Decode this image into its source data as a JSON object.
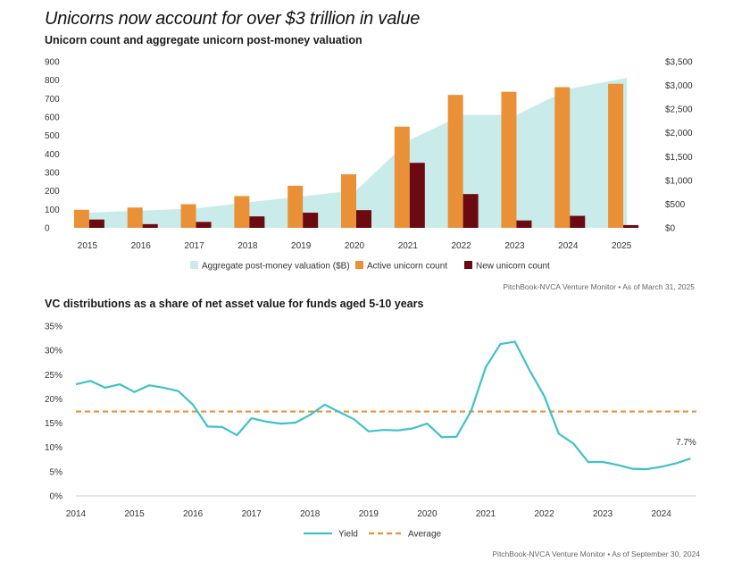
{
  "header": {
    "title": "Unicorns now account for over $3 trillion in value",
    "subtitle": "Unicorn count and aggregate unicorn post-money valuation"
  },
  "chart_data": [
    {
      "type": "bar",
      "title": "Unicorns now account for over $3 trillion in value",
      "subtitle": "Unicorn count and aggregate unicorn post-money valuation",
      "categories": [
        "2015",
        "2016",
        "2017",
        "2018",
        "2019",
        "2020",
        "2021",
        "2022",
        "2023",
        "2024",
        "2025"
      ],
      "series": [
        {
          "name": "Aggregate post-money valuation ($B)",
          "type": "area",
          "axis": "right",
          "color": "#c9ecea",
          "values": [
            310,
            365,
            410,
            540,
            665,
            790,
            1850,
            2380,
            2380,
            2930,
            3160
          ]
        },
        {
          "name": "Active unicorn count",
          "type": "bar",
          "axis": "left",
          "color": "#ea9138",
          "values": [
            98,
            110,
            128,
            172,
            228,
            290,
            548,
            720,
            737,
            762,
            780
          ]
        },
        {
          "name": "New unicorn count",
          "type": "bar",
          "axis": "left",
          "color": "#6b0a10",
          "values": [
            45,
            20,
            32,
            62,
            82,
            96,
            352,
            183,
            40,
            65,
            15
          ]
        }
      ],
      "ylim_left": [
        0,
        900
      ],
      "yticks_left": [
        "900",
        "800",
        "700",
        "600",
        "500",
        "400",
        "300",
        "200",
        "100",
        "0"
      ],
      "ylim_right": [
        0,
        3500
      ],
      "yticks_right": [
        "$3,500",
        "$3,000",
        "$2,500",
        "$2,000",
        "$1,500",
        "$1,000",
        "$500",
        "$0"
      ],
      "legend_position": "bottom",
      "grid": false,
      "source": "PitchBook-NVCA Venture Monitor  •  As of March 31, 2025"
    },
    {
      "type": "line",
      "title": "VC distributions as a share of net asset value for funds aged 5-10 years",
      "x_ticks": [
        "2014",
        "2015",
        "2016",
        "2017",
        "2018",
        "2019",
        "2020",
        "2021",
        "2022",
        "2023",
        "2024"
      ],
      "x": [
        2014.0,
        2014.25,
        2014.5,
        2014.75,
        2015.0,
        2015.25,
        2015.5,
        2015.75,
        2016.0,
        2016.25,
        2016.5,
        2016.75,
        2017.0,
        2017.25,
        2017.5,
        2017.75,
        2018.0,
        2018.25,
        2018.5,
        2018.75,
        2019.0,
        2019.25,
        2019.5,
        2019.75,
        2020.0,
        2020.25,
        2020.5,
        2020.75,
        2021.0,
        2021.25,
        2021.5,
        2021.75,
        2022.0,
        2022.25,
        2022.5,
        2022.75,
        2023.0,
        2023.25,
        2023.5,
        2023.75,
        2024.0,
        2024.25,
        2024.5
      ],
      "series": [
        {
          "name": "Yield",
          "color": "#3fc1c9",
          "values": [
            23.0,
            23.7,
            22.3,
            23.0,
            21.4,
            22.8,
            22.3,
            21.6,
            18.8,
            14.3,
            14.2,
            12.5,
            16.0,
            15.3,
            14.9,
            15.1,
            16.7,
            18.8,
            17.3,
            15.8,
            13.3,
            13.6,
            13.5,
            13.9,
            14.9,
            12.1,
            12.2,
            17.5,
            26.5,
            31.3,
            31.8,
            25.9,
            20.6,
            12.8,
            10.8,
            7.0,
            7.0,
            6.4,
            5.6,
            5.5,
            6.0,
            6.7,
            7.7
          ]
        },
        {
          "name": "Average",
          "color": "#e8913a",
          "style": "dashed",
          "value": 17.4
        }
      ],
      "annotation": "7.7%",
      "ylim": [
        0,
        35
      ],
      "yticks": [
        "35%",
        "30%",
        "25%",
        "20%",
        "15%",
        "10%",
        "5%",
        "0%"
      ],
      "legend_position": "bottom",
      "grid": false,
      "source": "PitchBook-NVCA Venture Monitor  •  As of September 30, 2024"
    }
  ]
}
